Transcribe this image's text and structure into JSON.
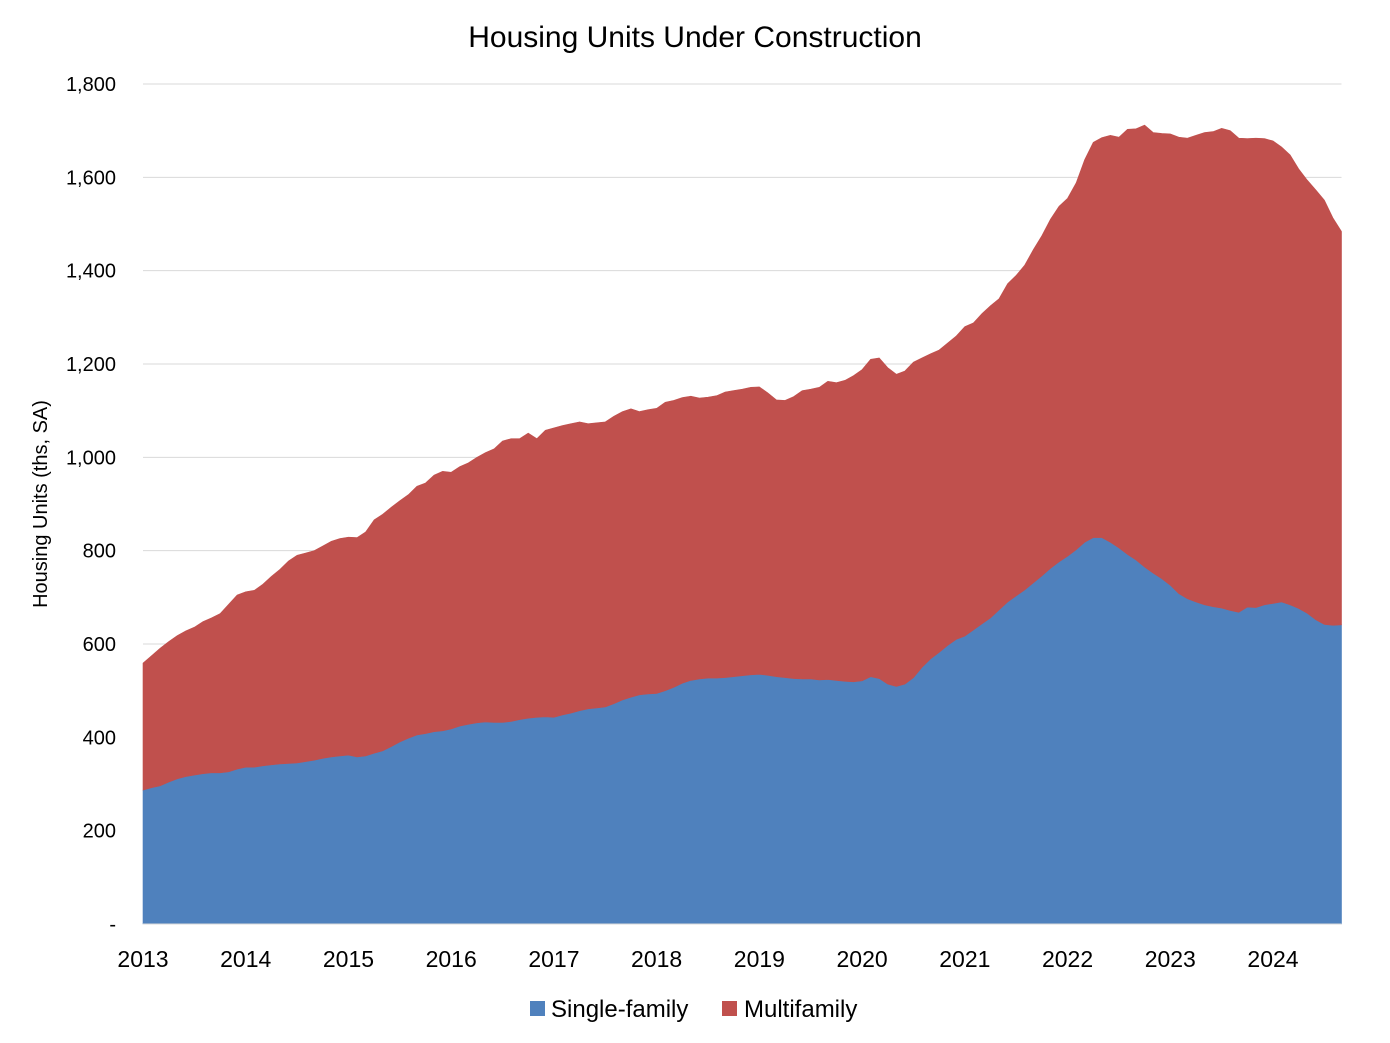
{
  "chart_data": {
    "type": "area",
    "stacked": true,
    "title": "Housing Units Under Construction",
    "ylabel": "Housing Units (ths, SA)",
    "grid": "horizontal",
    "legend": "bottom",
    "xlim": [
      "2013-01",
      "2024-09"
    ],
    "xtick_labels": [
      "2013",
      "2014",
      "2015",
      "2016",
      "2017",
      "2018",
      "2019",
      "2020",
      "2021",
      "2022",
      "2023",
      "2024"
    ],
    "ylim": [
      0,
      1800
    ],
    "yticks": [
      0,
      200,
      400,
      600,
      800,
      1000,
      1200,
      1400,
      1600,
      1800
    ],
    "ytick_labels": [
      "-",
      "200",
      "400",
      "600",
      "800",
      "1,000",
      "1,200",
      "1,400",
      "1,600",
      "1,800"
    ],
    "x": [
      "2013-01",
      "2013-02",
      "2013-03",
      "2013-04",
      "2013-05",
      "2013-06",
      "2013-07",
      "2013-08",
      "2013-09",
      "2013-10",
      "2013-11",
      "2013-12",
      "2014-01",
      "2014-02",
      "2014-03",
      "2014-04",
      "2014-05",
      "2014-06",
      "2014-07",
      "2014-08",
      "2014-09",
      "2014-10",
      "2014-11",
      "2014-12",
      "2015-01",
      "2015-02",
      "2015-03",
      "2015-04",
      "2015-05",
      "2015-06",
      "2015-07",
      "2015-08",
      "2015-09",
      "2015-10",
      "2015-11",
      "2015-12",
      "2016-01",
      "2016-02",
      "2016-03",
      "2016-04",
      "2016-05",
      "2016-06",
      "2016-07",
      "2016-08",
      "2016-09",
      "2016-10",
      "2016-11",
      "2016-12",
      "2017-01",
      "2017-02",
      "2017-03",
      "2017-04",
      "2017-05",
      "2017-06",
      "2017-07",
      "2017-08",
      "2017-09",
      "2017-10",
      "2017-11",
      "2017-12",
      "2018-01",
      "2018-02",
      "2018-03",
      "2018-04",
      "2018-05",
      "2018-06",
      "2018-07",
      "2018-08",
      "2018-09",
      "2018-10",
      "2018-11",
      "2018-12",
      "2019-01",
      "2019-02",
      "2019-03",
      "2019-04",
      "2019-05",
      "2019-06",
      "2019-07",
      "2019-08",
      "2019-09",
      "2019-10",
      "2019-11",
      "2019-12",
      "2020-01",
      "2020-02",
      "2020-03",
      "2020-04",
      "2020-05",
      "2020-06",
      "2020-07",
      "2020-08",
      "2020-09",
      "2020-10",
      "2020-11",
      "2020-12",
      "2021-01",
      "2021-02",
      "2021-03",
      "2021-04",
      "2021-05",
      "2021-06",
      "2021-07",
      "2021-08",
      "2021-09",
      "2021-10",
      "2021-11",
      "2021-12",
      "2022-01",
      "2022-02",
      "2022-03",
      "2022-04",
      "2022-05",
      "2022-06",
      "2022-07",
      "2022-08",
      "2022-09",
      "2022-10",
      "2022-11",
      "2022-12",
      "2023-01",
      "2023-02",
      "2023-03",
      "2023-04",
      "2023-05",
      "2023-06",
      "2023-07",
      "2023-08",
      "2023-09",
      "2023-10",
      "2023-11",
      "2023-12",
      "2024-01",
      "2024-02",
      "2024-03",
      "2024-04",
      "2024-05",
      "2024-06",
      "2024-07",
      "2024-08",
      "2024-09"
    ],
    "series": [
      {
        "name": "Single-family",
        "color": "#4F81BD",
        "values": [
          287,
          292,
          296,
          304,
          311,
          316,
          319,
          322,
          324,
          324,
          326,
          332,
          336,
          336,
          339,
          341,
          343,
          344,
          345,
          348,
          351,
          355,
          358,
          360,
          362,
          358,
          360,
          366,
          371,
          380,
          390,
          398,
          405,
          408,
          412,
          414,
          418,
          424,
          428,
          431,
          433,
          432,
          432,
          434,
          438,
          441,
          443,
          444,
          443,
          448,
          452,
          457,
          461,
          463,
          465,
          472,
          480,
          486,
          491,
          493,
          494,
          500,
          507,
          516,
          522,
          525,
          527,
          527,
          528,
          530,
          532,
          534,
          535,
          533,
          530,
          528,
          526,
          525,
          525,
          523,
          524,
          522,
          520,
          519,
          521,
          530,
          526,
          514,
          509,
          514,
          528,
          550,
          568,
          582,
          597,
          610,
          617,
          630,
          643,
          656,
          673,
          690,
          703,
          716,
          731,
          746,
          762,
          776,
          788,
          802,
          818,
          828,
          828,
          818,
          806,
          792,
          780,
          765,
          752,
          740,
          726,
          708,
          697,
          690,
          684,
          680,
          677,
          672,
          668,
          679,
          678,
          684,
          687,
          690,
          684,
          676,
          666,
          652,
          642,
          640,
          641
        ]
      },
      {
        "name": "Multifamily",
        "color": "#C0504D",
        "values": [
          272,
          283,
          295,
          301,
          307,
          312,
          317,
          326,
          332,
          341,
          359,
          373,
          376,
          379,
          389,
          404,
          417,
          434,
          445,
          447,
          449,
          455,
          462,
          466,
          467,
          470,
          480,
          500,
          507,
          513,
          517,
          522,
          533,
          537,
          550,
          556,
          550,
          556,
          560,
          569,
          577,
          586,
          603,
          606,
          602,
          611,
          597,
          614,
          620,
          620,
          620,
          619,
          611,
          611,
          611,
          616,
          618,
          618,
          607,
          609,
          611,
          618,
          615,
          612,
          609,
          602,
          602,
          605,
          612,
          613,
          614,
          616,
          616,
          605,
          593,
          594,
          604,
          618,
          621,
          627,
          639,
          638,
          645,
          656,
          667,
          680,
          687,
          678,
          669,
          671,
          676,
          663,
          654,
          648,
          648,
          650,
          663,
          658,
          665,
          669,
          667,
          682,
          687,
          696,
          714,
          729,
          748,
          762,
          767,
          786,
          820,
          847,
          857,
          872,
          880,
          911,
          924,
          947,
          944,
          954,
          967,
          978,
          987,
          1000,
          1012,
          1018,
          1028,
          1028,
          1016,
          1004,
          1006,
          999,
          991,
          975,
          964,
          942,
          928,
          921,
          909,
          873,
          843
        ]
      }
    ]
  }
}
